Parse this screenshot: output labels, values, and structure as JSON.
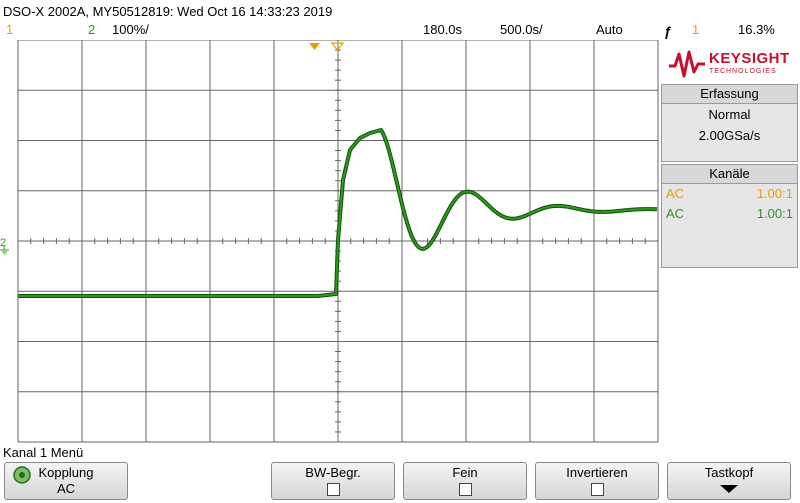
{
  "header": {
    "title": "DSO-X 2002A, MY50512819: Wed Oct 16 14:33:23 2019",
    "ch1_label": "1",
    "ch2_label": "2",
    "ch2_scale": "100%/",
    "delay": "180.0s",
    "timebase": "500.0s/",
    "trigger_mode": "Auto",
    "trigger_source": "1",
    "trigger_level": "16.3%"
  },
  "logo": {
    "name": "KEYSIGHT",
    "sub": "TECHNOLOGIES"
  },
  "acquisition": {
    "header": "Erfassung",
    "mode": "Normal",
    "rate": "2.00GSa/s"
  },
  "channels": {
    "header": "Kanäle",
    "ch1": {
      "coupling": "AC",
      "probe": "1.00:1"
    },
    "ch2": {
      "coupling": "AC",
      "probe": "1.00:1"
    }
  },
  "menu": {
    "title": "Kanal 1 Menü",
    "softkeys": [
      {
        "label": "Kopplung",
        "value": "AC"
      },
      {
        "label": "BW-Begr."
      },
      {
        "label": "Fein"
      },
      {
        "label": "Invertieren"
      },
      {
        "label": "Tastkopf"
      }
    ]
  },
  "colors": {
    "ch1": "#e8a000",
    "ch2": "#2a9a1a",
    "grid": "#555555",
    "brand": "#c8102e"
  },
  "icons": {
    "trigger": "trigger-edge-icon",
    "knob": "knob-icon",
    "ground": "ground-icon",
    "checkbox": "checkbox-icon",
    "down_arrow": "down-arrow-icon",
    "logo_wave": "keysight-wave-icon"
  }
}
